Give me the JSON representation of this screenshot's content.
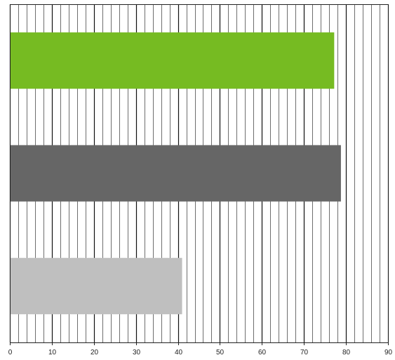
{
  "chart_data": {
    "type": "bar",
    "orientation": "horizontal",
    "title": "",
    "xlabel": "",
    "ylabel": "",
    "xlim": [
      0,
      90
    ],
    "major_ticks": [
      0,
      10,
      20,
      30,
      40,
      50,
      60,
      70,
      80,
      90
    ],
    "tick_labels": [
      "0",
      "10",
      "20",
      "30",
      "40",
      "50",
      "60",
      "70",
      "80",
      "90"
    ],
    "minor_tick_step": 2,
    "grid": true,
    "legend": false,
    "bars": [
      {
        "value": 77.2,
        "color": "#76BB22"
      },
      {
        "value": 78.8,
        "color": "#666666"
      },
      {
        "value": 41.0,
        "color": "#BFBFBF"
      }
    ]
  }
}
